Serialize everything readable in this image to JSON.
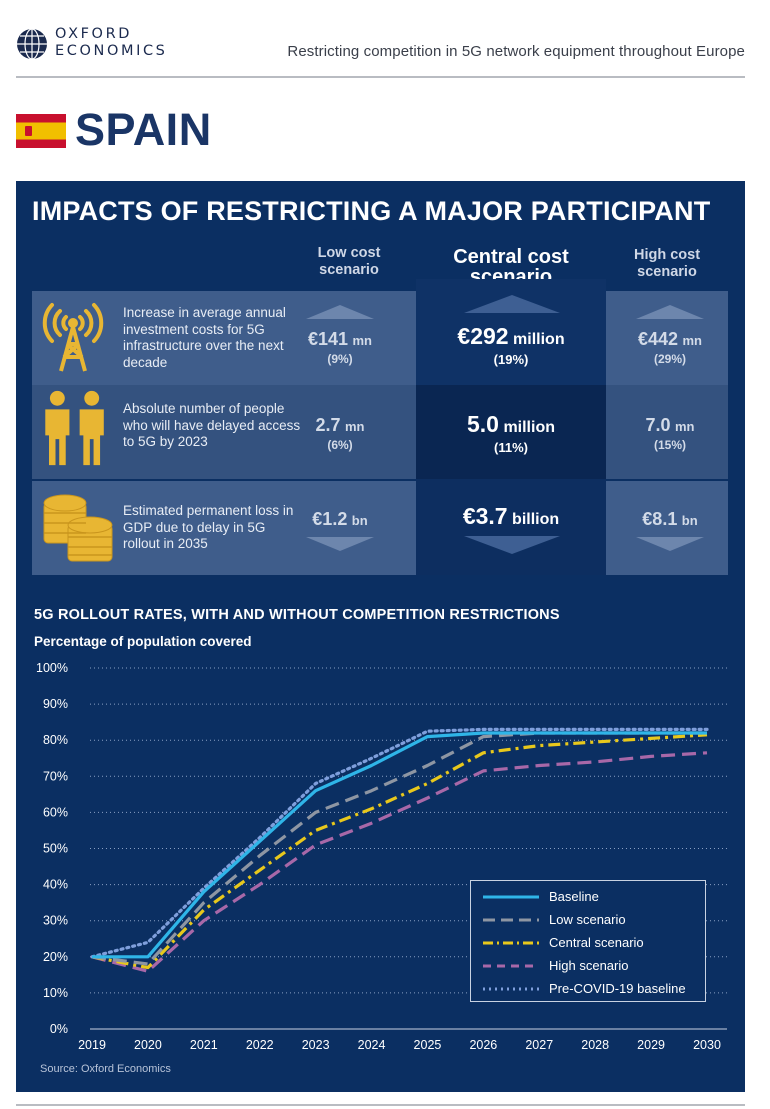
{
  "header": {
    "logo_line1": "OXFORD",
    "logo_line2": "ECONOMICS",
    "subtitle": "Restricting competition in 5G network equipment throughout Europe"
  },
  "country": {
    "name": "SPAIN"
  },
  "impacts": {
    "title": "IMPACTS OF RESTRICTING A MAJOR PARTICIPANT",
    "columns": {
      "low": "Low cost scenario",
      "central": "Central cost scenario",
      "high": "High cost scenario"
    },
    "rows": [
      {
        "icon": "antenna-tower-icon",
        "description": "Increase in average annual investment costs for 5G infrastructure over the next decade",
        "low": {
          "value": "€141",
          "unit": "mn",
          "pct": "(9%)"
        },
        "central": {
          "value": "€292",
          "unit": "million",
          "pct": "(19%)"
        },
        "high": {
          "value": "€442",
          "unit": "mn",
          "pct": "(29%)"
        }
      },
      {
        "icon": "people-icon",
        "description": "Absolute number of people who will have delayed access to 5G by 2023",
        "low": {
          "value": "2.7",
          "unit": "mn",
          "pct": "(6%)"
        },
        "central": {
          "value": "5.0",
          "unit": "million",
          "pct": "(11%)"
        },
        "high": {
          "value": "7.0",
          "unit": "mn",
          "pct": "(15%)"
        }
      },
      {
        "icon": "coin-stacks-icon",
        "description": "Estimated permanent loss in GDP due to delay in 5G rollout in 2035",
        "low": {
          "value": "€1.2",
          "unit": "bn"
        },
        "central": {
          "value": "€3.7",
          "unit": "billion"
        },
        "high": {
          "value": "€8.1",
          "unit": "bn"
        }
      }
    ]
  },
  "chart_data": {
    "type": "line",
    "title": "5G ROLLOUT RATES, WITH AND WITHOUT COMPETITION RESTRICTIONS",
    "ylabel": "Percentage of population covered",
    "x": [
      2019,
      2020,
      2021,
      2022,
      2023,
      2024,
      2025,
      2026,
      2027,
      2028,
      2029,
      2030
    ],
    "ylim": [
      0,
      100
    ],
    "yticks": [
      "0%",
      "10%",
      "20%",
      "30%",
      "40%",
      "50%",
      "60%",
      "70%",
      "80%",
      "90%",
      "100%"
    ],
    "series": [
      {
        "name": "Baseline",
        "color": "#2fb5e8",
        "style": "solid",
        "values": [
          20,
          20,
          38,
          52,
          66,
          73,
          81,
          82,
          82,
          82,
          82,
          82
        ]
      },
      {
        "name": "Low scenario",
        "color": "#8e96a3",
        "style": "dash",
        "values": [
          20,
          18,
          35,
          48,
          60,
          66,
          73,
          81,
          82,
          82,
          82,
          82
        ]
      },
      {
        "name": "Central scenario",
        "color": "#e8c81c",
        "style": "dashdot",
        "values": [
          20,
          17,
          33,
          44,
          55,
          61,
          68,
          76.5,
          78.5,
          79.5,
          80.5,
          81.5
        ]
      },
      {
        "name": "High scenario",
        "color": "#a868a8",
        "style": "dash",
        "values": [
          20,
          16,
          30,
          40,
          51,
          57,
          64,
          71.5,
          73,
          74,
          75.5,
          76.5
        ]
      },
      {
        "name": "Pre-COVID-19 baseline",
        "color": "#7f9fdc",
        "style": "dot",
        "values": [
          20,
          24,
          39,
          53,
          68,
          75,
          82.5,
          83,
          83,
          83,
          83,
          83
        ]
      }
    ]
  },
  "source": "Source: Oxford Economics"
}
